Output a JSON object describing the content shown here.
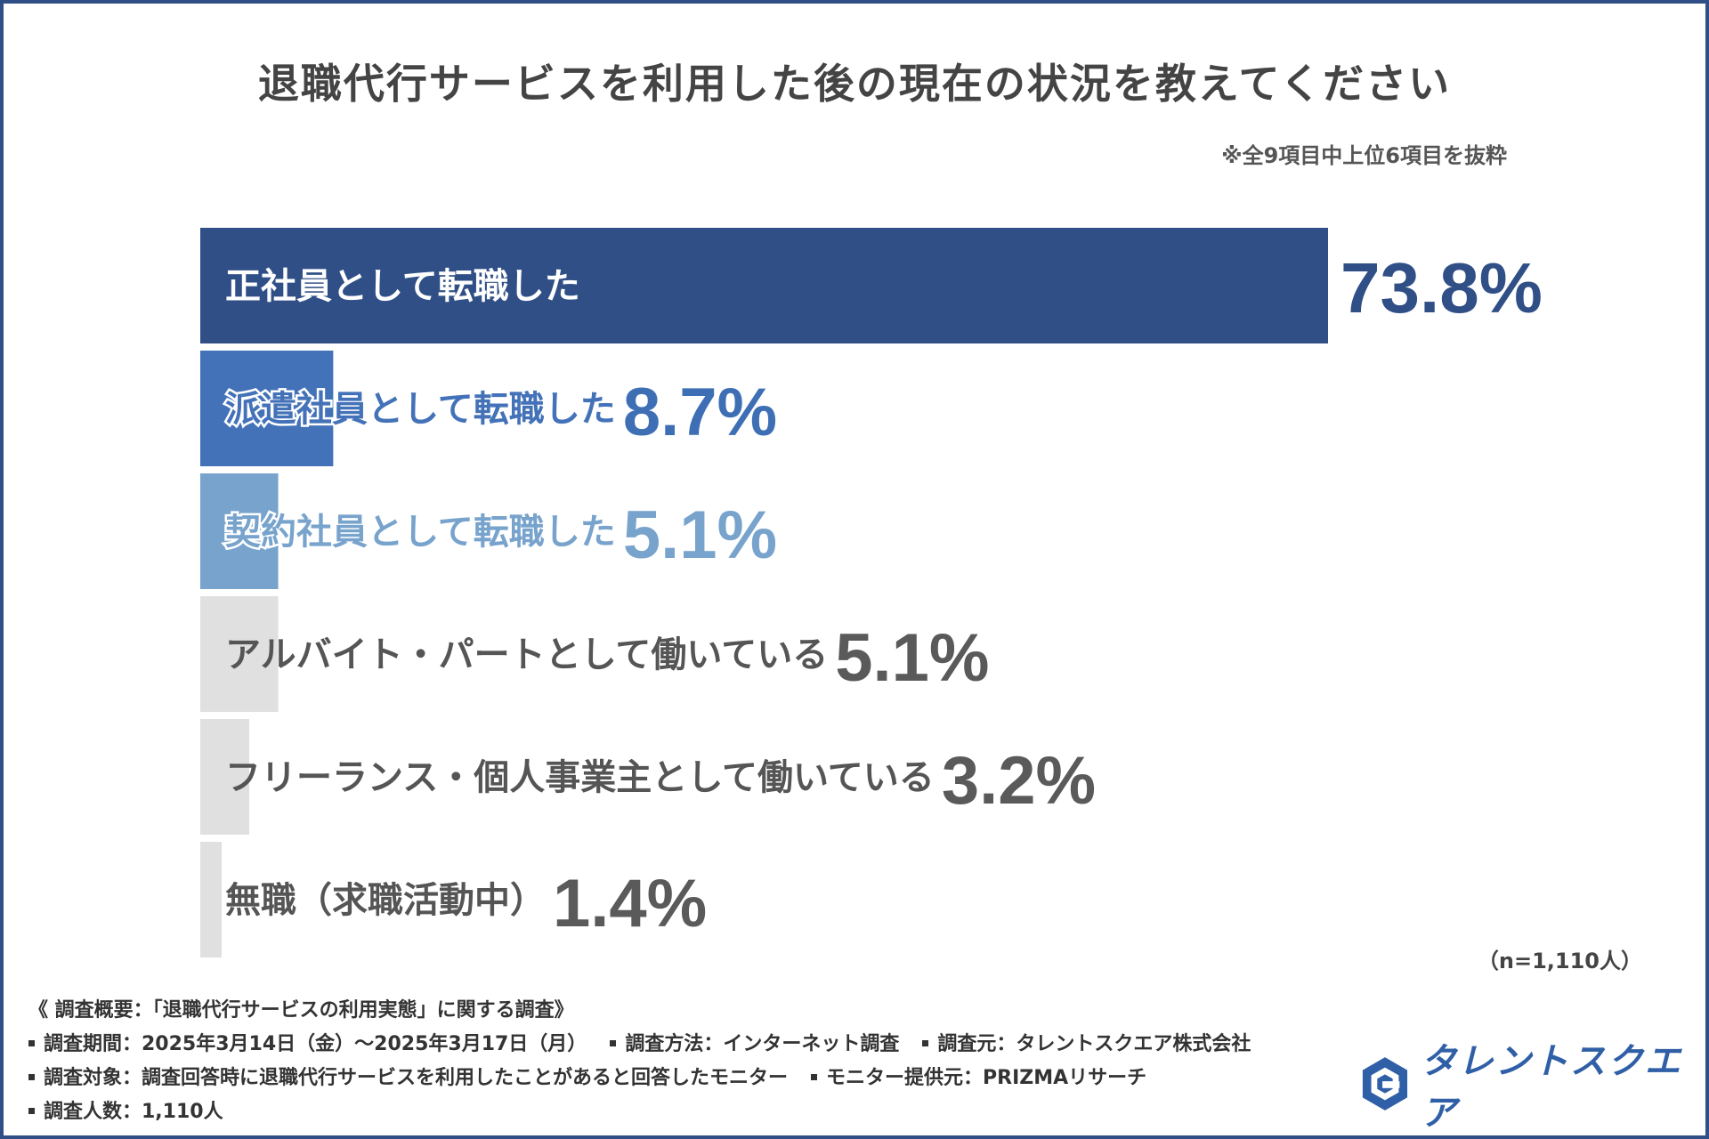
{
  "title": "退職代行サービスを利用した後の現在の状況を教えてください",
  "subnote": "※全9項目中上位6項目を抜粋",
  "sample_note": "（n=1,110人）",
  "chart_data": {
    "type": "bar",
    "orientation": "horizontal",
    "title": "退職代行サービスを利用した後の現在の状況を教えてください",
    "unit": "%",
    "xlim": [
      0,
      73.8
    ],
    "categories": [
      "正社員として転職した",
      "派遣社員として転職した",
      "契約社員として転職した",
      "アルバイト・パートとして働いている",
      "フリーランス・個人事業主として働いている",
      "無職（求職活動中）"
    ],
    "values": [
      73.8,
      8.7,
      5.1,
      5.1,
      3.2,
      1.4
    ],
    "value_labels": [
      "73.8%",
      "8.7%",
      "5.1%",
      "5.1%",
      "3.2%",
      "1.4%"
    ],
    "bar_colors": [
      "#2f4f86",
      "#4472b8",
      "#77a3cc",
      "#e0e0e0",
      "#e0e0e0",
      "#e0e0e0"
    ],
    "label_colors": [
      "#ffffff",
      "#4472b8",
      "#77a3cc",
      "#555555",
      "#555555",
      "#555555"
    ],
    "value_colors": [
      "#2f4f86",
      "#3e6fb5",
      "#77a3cc",
      "#5a5a5a",
      "#5a5a5a",
      "#5a5a5a"
    ]
  },
  "survey": {
    "heading": "《 調査概要：「退職代行サービスの利用実態」に関する調査》",
    "period": "調査期間：2025年3月14日（金）〜2025年3月17日（月）",
    "method": "調査方法：インターネット調査",
    "org": "調査元：タレントスクエア株式会社",
    "target": "調査対象：調査回答時に退職代行サービスを利用したことがあると回答したモニター",
    "provider": "モニター提供元：PRIZMAリサーチ",
    "count": "調査人数：1,110人"
  },
  "logo": {
    "text": "タレントスクエア",
    "icon": "talent-square-logo-icon",
    "color": "#2f5fa6"
  }
}
